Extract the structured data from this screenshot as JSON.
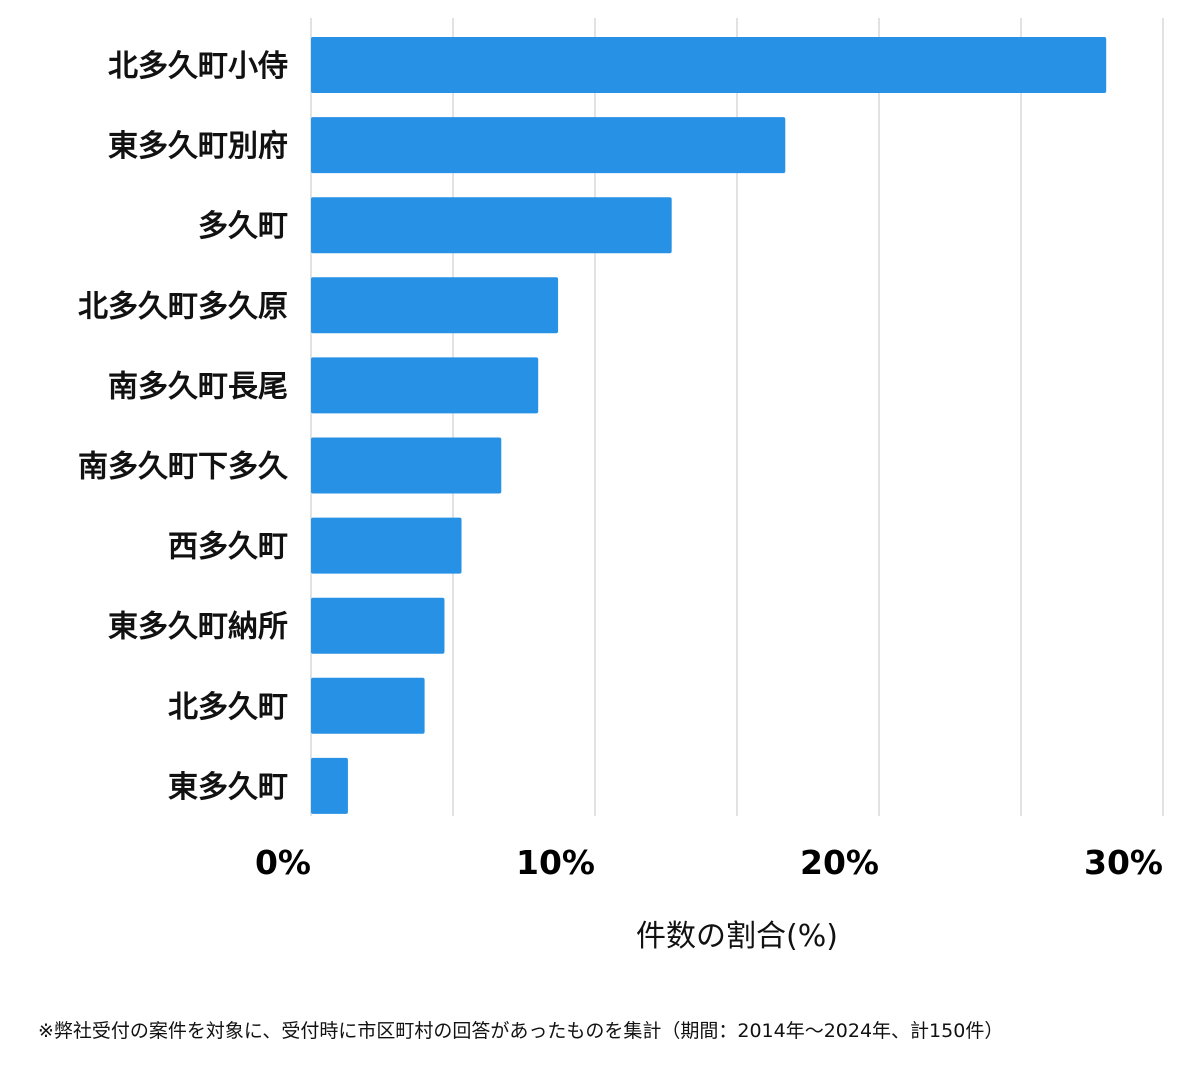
{
  "chart_data": {
    "type": "bar",
    "orientation": "horizontal",
    "categories": [
      "北多久町小侍",
      "東多久町別府",
      "多久町",
      "北多久町多久原",
      "南多久町長尾",
      "南多久町下多久",
      "西多久町",
      "東多久町納所",
      "北多久町",
      "東多久町"
    ],
    "values": [
      28.0,
      16.7,
      12.7,
      8.7,
      8.0,
      6.7,
      5.3,
      4.7,
      4.0,
      1.3
    ],
    "xlabel": "件数の割合(%)",
    "xlim": [
      0,
      30
    ],
    "x_ticks": [
      "0%",
      "10%",
      "20%",
      "30%"
    ],
    "grid": true,
    "bar_color": "#2791e5"
  },
  "footnote": "※弊社受付の案件を対象に、受付時に市区町村の回答があったものを集計（期間：2014年～2024年、計150件）"
}
